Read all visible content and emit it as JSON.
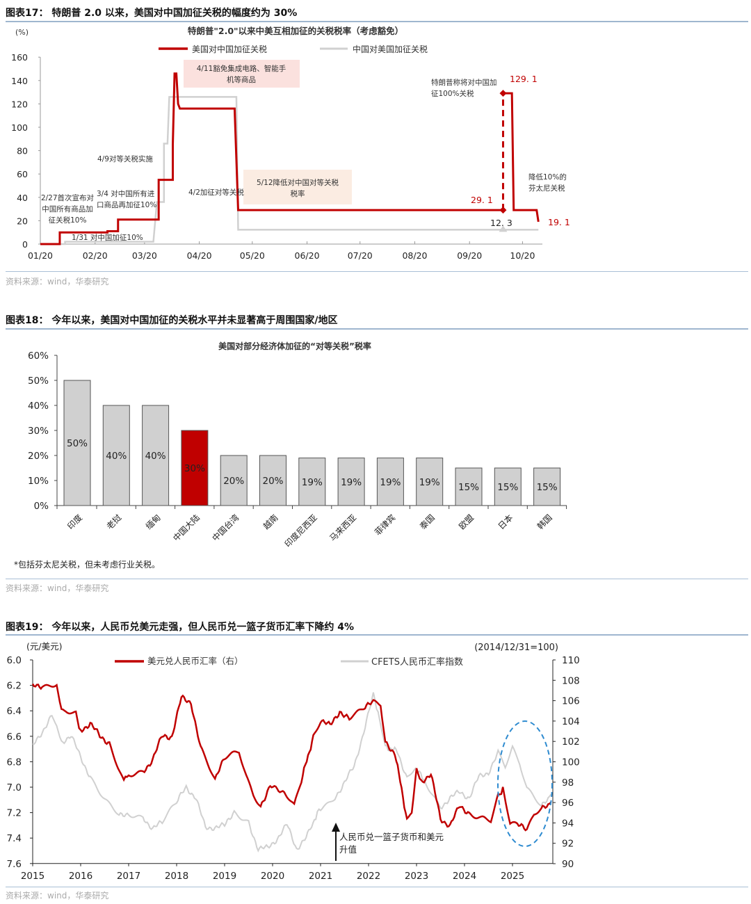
{
  "figures": [
    {
      "title": "图表17：  特朗普 2.0 以来，美国对中国加征关税的幅度约为 30%",
      "source": "资料来源：wind，华泰研究"
    },
    {
      "title": "图表18：  今年以来，美国对中国加征的关税水平并未显著高于周围国家/地区",
      "source": "资料来源：wind，华泰研究"
    },
    {
      "title": "图表19：  今年以来，人民币兑美元走强，但人民币兑一篮子货币汇率下降约 4%",
      "source": "资料来源：wind，华泰研究"
    }
  ],
  "chart_data": [
    {
      "type": "line",
      "title": "特朗普\"2.0\"以来中美互相加征的关税税率（考虑豁免）",
      "ylabel": "(%)",
      "ylim": [
        0,
        160
      ],
      "yticks": [
        "0",
        "20",
        "40",
        "60",
        "80",
        "100",
        "120",
        "140",
        "160"
      ],
      "xticks": [
        "01/20",
        "02/20",
        "03/20",
        "04/20",
        "05/20",
        "06/20",
        "07/20",
        "08/20",
        "09/20",
        "10/20"
      ],
      "x_unit": "days since 01/20",
      "legend": [
        "美国对中国加征关税",
        "中国对美国加征关税"
      ],
      "colors": {
        "us": "#c00000",
        "cn": "#d0d0d0"
      },
      "series": [
        {
          "name": "美国对中国加征关税",
          "points": [
            [
              0,
              0
            ],
            [
              11,
              0
            ],
            [
              11,
              10
            ],
            [
              38,
              10
            ],
            [
              38,
              11
            ],
            [
              44,
              11
            ],
            [
              44,
              21
            ],
            [
              67,
              21
            ],
            [
              67,
              55
            ],
            [
              75,
              55
            ],
            [
              75,
              85
            ],
            [
              76,
              146
            ],
            [
              77,
              146
            ],
            [
              78,
              120
            ],
            [
              79,
              116
            ],
            [
              110,
              116
            ],
            [
              112,
              29.1
            ],
            [
              262,
              29.1
            ]
          ]
        },
        {
          "name": "美国对中国加征关税(续)",
          "points": [
            [
              262,
              129.1
            ],
            [
              267,
              129.1
            ],
            [
              268,
              29.1
            ],
            [
              281,
              29.1
            ],
            [
              282,
              19.1
            ]
          ]
        },
        {
          "name": "中国对美国加征关税",
          "points": [
            [
              0,
              0
            ],
            [
              14,
              0
            ],
            [
              14,
              2
            ],
            [
              64,
              2
            ],
            [
              66,
              36
            ],
            [
              70,
              36
            ],
            [
              70,
              86
            ],
            [
              72,
              86
            ],
            [
              73,
              126
            ],
            [
              111,
              126
            ],
            [
              112,
              12.3
            ],
            [
              282,
              12.3
            ]
          ]
        }
      ],
      "dashed_jump": {
        "x": 262,
        "from": 29.1,
        "to": 129.1
      },
      "labels": {
        "v129": "129. 1",
        "v29": "29. 1",
        "v12": "12. 3",
        "v19": "19. 1"
      },
      "annotations": {
        "a411": [
          "4/11豁免集成电路、智能手",
          "机等商品"
        ],
        "a49": [
          "4/9对等关税实施"
        ],
        "a227": [
          "2/27首次宣布对",
          "中国所有商品加",
          "征关税10%"
        ],
        "a34": [
          "3/4  对中国所有进",
          "口商品再加征10%"
        ],
        "a42": [
          "4/2加征对等关税"
        ],
        "a512": [
          "5/12降低对中国对等关税",
          "税率"
        ],
        "a131": [
          "1/31  对中国加征10%"
        ],
        "a100": [
          "特朗普称将对中国加",
          "征100%关税"
        ],
        "afen": [
          "降低10%的",
          "芬太尼关税"
        ]
      }
    },
    {
      "type": "bar",
      "title": "美国对部分经济体加征的“对等关税”税率",
      "ylim": [
        0,
        60
      ],
      "yticks": [
        "0%",
        "10%",
        "20%",
        "30%",
        "40%",
        "50%",
        "60%"
      ],
      "categories": [
        "印度",
        "老挝",
        "缅甸",
        "中国大陆",
        "中国台湾",
        "越南",
        "印度尼西亚",
        "马来西亚",
        "菲律宾",
        "泰国",
        "欧盟",
        "日本",
        "韩国"
      ],
      "values": [
        50,
        40,
        40,
        30,
        20,
        20,
        19,
        19,
        19,
        19,
        15,
        15,
        15
      ],
      "value_labels": [
        "50%",
        "40%",
        "40%",
        "30%",
        "20%",
        "20%",
        "19%",
        "19%",
        "19%",
        "19%",
        "15%",
        "15%",
        "15%"
      ],
      "highlight": "中国大陆",
      "colors": {
        "bar": "#d0d0d0",
        "highlight": "#c00000"
      },
      "footnote": "*包括芬太尼关税，但未考虑行业关税。"
    },
    {
      "type": "line",
      "left_label": "(元/美元)",
      "right_label": "(2014/12/31=100)",
      "left_ylim": [
        6.0,
        7.6
      ],
      "left_inverted": true,
      "left_yticks": [
        "6.0",
        "6.2",
        "6.4",
        "6.6",
        "6.8",
        "7.0",
        "7.2",
        "7.4",
        "7.6"
      ],
      "right_ylim": [
        90,
        110
      ],
      "right_yticks": [
        "110",
        "108",
        "106",
        "104",
        "102",
        "100",
        "98",
        "96",
        "94",
        "92",
        "90"
      ],
      "xticks": [
        "2015",
        "2016",
        "2017",
        "2018",
        "2019",
        "2020",
        "2021",
        "2022",
        "2023",
        "2024",
        "2025"
      ],
      "legend": [
        "美元兑人民币汇率（右）",
        "CFETS人民币汇率指数"
      ],
      "colors": {
        "usdcny": "#c00000",
        "cfets": "#d0d0d0",
        "ellipse": "#2e8bd0"
      },
      "series": [
        {
          "name": "美元兑人民币汇率（右）",
          "axis": "left",
          "points": [
            [
              2015.0,
              6.21
            ],
            [
              2015.2,
              6.2
            ],
            [
              2015.5,
              6.2
            ],
            [
              2015.6,
              6.39
            ],
            [
              2015.9,
              6.43
            ],
            [
              2016.0,
              6.55
            ],
            [
              2016.2,
              6.5
            ],
            [
              2016.4,
              6.6
            ],
            [
              2016.6,
              6.65
            ],
            [
              2016.9,
              6.95
            ],
            [
              2017.0,
              6.89
            ],
            [
              2017.3,
              6.88
            ],
            [
              2017.5,
              6.78
            ],
            [
              2017.7,
              6.6
            ],
            [
              2017.9,
              6.6
            ],
            [
              2018.1,
              6.3
            ],
            [
              2018.3,
              6.33
            ],
            [
              2018.5,
              6.7
            ],
            [
              2018.8,
              6.93
            ],
            [
              2019.0,
              6.78
            ],
            [
              2019.3,
              6.72
            ],
            [
              2019.45,
              6.9
            ],
            [
              2019.6,
              7.05
            ],
            [
              2019.75,
              7.15
            ],
            [
              2019.95,
              6.98
            ],
            [
              2020.3,
              7.08
            ],
            [
              2020.45,
              7.15
            ],
            [
              2020.6,
              6.95
            ],
            [
              2020.85,
              6.6
            ],
            [
              2021.0,
              6.47
            ],
            [
              2021.2,
              6.52
            ],
            [
              2021.4,
              6.4
            ],
            [
              2021.6,
              6.47
            ],
            [
              2021.9,
              6.37
            ],
            [
              2022.1,
              6.34
            ],
            [
              2022.25,
              6.36
            ],
            [
              2022.35,
              6.65
            ],
            [
              2022.55,
              6.73
            ],
            [
              2022.8,
              7.25
            ],
            [
              2022.9,
              7.2
            ],
            [
              2023.0,
              6.86
            ],
            [
              2023.1,
              6.95
            ],
            [
              2023.3,
              6.9
            ],
            [
              2023.5,
              7.25
            ],
            [
              2023.7,
              7.3
            ],
            [
              2023.9,
              7.15
            ],
            [
              2024.1,
              7.2
            ],
            [
              2024.4,
              7.24
            ],
            [
              2024.55,
              7.27
            ],
            [
              2024.7,
              7.08
            ],
            [
              2024.8,
              7.0
            ],
            [
              2024.95,
              7.3
            ],
            [
              2025.1,
              7.3
            ],
            [
              2025.3,
              7.33
            ],
            [
              2025.45,
              7.22
            ],
            [
              2025.6,
              7.18
            ],
            [
              2025.8,
              7.12
            ]
          ]
        },
        {
          "name": "CFETS人民币汇率指数",
          "axis": "right",
          "points": [
            [
              2015.0,
              101.5
            ],
            [
              2015.2,
              103
            ],
            [
              2015.4,
              104.5
            ],
            [
              2015.5,
              103.5
            ],
            [
              2015.6,
              102
            ],
            [
              2015.8,
              102.5
            ],
            [
              2016.0,
              100.5
            ],
            [
              2016.2,
              98.5
            ],
            [
              2016.5,
              96.5
            ],
            [
              2016.8,
              94.7
            ],
            [
              2017.0,
              95
            ],
            [
              2017.3,
              94.5
            ],
            [
              2017.5,
              93.5
            ],
            [
              2017.7,
              94
            ],
            [
              2018.0,
              96
            ],
            [
              2018.2,
              97.5
            ],
            [
              2018.4,
              96.5
            ],
            [
              2018.6,
              93.5
            ],
            [
              2019.0,
              93.7
            ],
            [
              2019.2,
              95.2
            ],
            [
              2019.5,
              94
            ],
            [
              2019.7,
              91.5
            ],
            [
              2019.9,
              91.5
            ],
            [
              2020.1,
              92.5
            ],
            [
              2020.3,
              93.8
            ],
            [
              2020.5,
              91.5
            ],
            [
              2020.7,
              92.5
            ],
            [
              2020.9,
              94.5
            ],
            [
              2021.0,
              95.5
            ],
            [
              2021.3,
              96.5
            ],
            [
              2021.5,
              98
            ],
            [
              2021.7,
              99.5
            ],
            [
              2021.9,
              103
            ],
            [
              2022.1,
              106.5
            ],
            [
              2022.2,
              105
            ],
            [
              2022.35,
              101.5
            ],
            [
              2022.6,
              101
            ],
            [
              2022.8,
              98.5
            ],
            [
              2022.95,
              99.5
            ],
            [
              2023.2,
              98
            ],
            [
              2023.5,
              95.5
            ],
            [
              2023.7,
              96.5
            ],
            [
              2023.9,
              97
            ],
            [
              2024.1,
              96.5
            ],
            [
              2024.3,
              98.5
            ],
            [
              2024.5,
              99
            ],
            [
              2024.7,
              100.8
            ],
            [
              2024.85,
              99.5
            ],
            [
              2025.0,
              101.5
            ],
            [
              2025.15,
              100
            ],
            [
              2025.3,
              97.5
            ],
            [
              2025.45,
              96.5
            ],
            [
              2025.6,
              95.5
            ],
            [
              2025.8,
              96.8
            ]
          ]
        }
      ],
      "annotation": [
        "人民币兑一篮子货币和美元",
        "升值"
      ]
    }
  ]
}
